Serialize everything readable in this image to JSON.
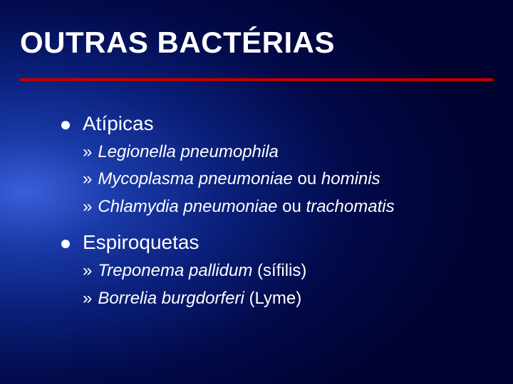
{
  "slide": {
    "title": "OUTRAS BACTÉRIAS",
    "title_color": "#ffffff",
    "title_fontsize": 42,
    "title_fontweight": 700,
    "divider_color": "#c00000",
    "divider_width": 664,
    "background": {
      "type": "radial-gradient",
      "stops": [
        "#3a5fd9",
        "#1a3aa8",
        "#0a1e78",
        "#020a4a",
        "#000230"
      ]
    },
    "text_color": "#ffffff",
    "bullet_color": "#ffffff",
    "body_fontsize": 28,
    "sub_fontsize": 24,
    "sections": [
      {
        "heading": "Atípicas",
        "items": [
          {
            "pre": "",
            "italic": "Legionella pneumophila",
            "post": ""
          },
          {
            "pre": "",
            "italic": "Mycoplasma pneumoniae",
            "mid": " ou ",
            "italic2": "hominis",
            "post": ""
          },
          {
            "pre": "",
            "italic": "Chlamydia pneumoniae",
            "mid": " ou ",
            "italic2": "trachomatis",
            "post": ""
          }
        ]
      },
      {
        "heading": "Espiroquetas",
        "items": [
          {
            "pre": "",
            "italic": "Treponema pallidum",
            "post": " (sífilis)"
          },
          {
            "pre": "",
            "italic": "Borrelia burgdorferi",
            "post": " (Lyme)"
          }
        ]
      }
    ]
  }
}
